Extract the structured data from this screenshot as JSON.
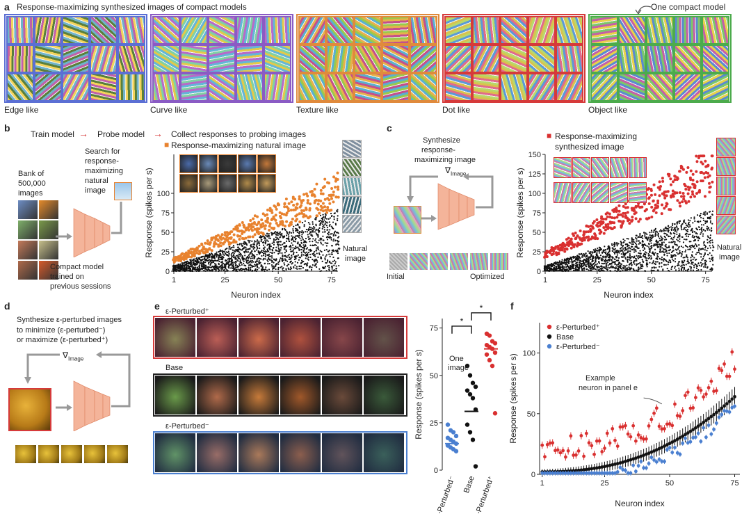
{
  "panel_a": {
    "letter": "a",
    "title": "Response-maximizing synthesized images of compact models",
    "annotation": "One compact model",
    "groups": [
      {
        "label": "Edge like",
        "color": "#5b6fd4"
      },
      {
        "label": "Curve like",
        "color": "#8a5bc4"
      },
      {
        "label": "Texture like",
        "color": "#e08a3c"
      },
      {
        "label": "Dot like",
        "color": "#d63a3a"
      },
      {
        "label": "Object like",
        "color": "#4cab4c"
      }
    ]
  },
  "panel_b": {
    "letter": "b",
    "flow": [
      "Train model",
      "Probe model",
      "Collect responses to probing images"
    ],
    "legend_orange": "Response-maximizing natural image",
    "bank_label": "Bank of 500,000 images",
    "bank_lines": [
      "Bank of",
      "500,000",
      "images"
    ],
    "search_lines": [
      "Search for",
      "response-",
      "maximizing",
      "natural",
      "image"
    ],
    "compact_lines": [
      "Compact model",
      "trained on",
      "previous sessions"
    ],
    "natural_image_lines": [
      "• Natural",
      "image"
    ]
  },
  "panel_c": {
    "letter": "c",
    "synth_lines": [
      "Synthesize",
      "response-",
      "maximizing image"
    ],
    "grad": "∇",
    "grad_sub": "Image",
    "initial": "Initial",
    "optimized": "Optimized",
    "legend_red_lines": [
      "Response-maximizing",
      "synthesized image"
    ],
    "natural_image_lines": [
      "• Natural",
      "image"
    ]
  },
  "panel_d": {
    "letter": "d",
    "lines": [
      "Synthesize ε-perturbed images",
      "to minimize (ε-perturbed⁻)",
      "or maximize (ε-perturbed⁺)"
    ],
    "grad": "∇",
    "grad_sub": "Image"
  },
  "panel_e": {
    "letter": "e",
    "row_labels": [
      "ε-Perturbed⁺",
      "Base",
      "ε-Perturbed⁻"
    ],
    "row_colors": [
      "#d63a3a",
      "#222222",
      "#4a7fd0"
    ],
    "one_image_lines": [
      "One",
      "image"
    ],
    "star": "*"
  },
  "panel_f": {
    "letter": "f",
    "example_lines": [
      "Example",
      "neuron in panel e"
    ]
  },
  "chart_data": [
    {
      "id": "b",
      "type": "scatter",
      "xlabel": "Neuron index",
      "ylabel": "Response (spikes per s)",
      "xticks": [
        1,
        25,
        50,
        75
      ],
      "yticks": [
        0,
        25,
        50,
        75,
        100
      ],
      "xlim": [
        1,
        78
      ],
      "ylim": [
        0,
        150
      ],
      "series": [
        {
          "name": "Response-maximizing natural image",
          "color": "#e8822e"
        },
        {
          "name": "Natural image",
          "color": "#111111"
        }
      ]
    },
    {
      "id": "c",
      "type": "scatter",
      "xlabel": "Neuron index",
      "ylabel": "Response (spikes per s)",
      "xticks": [
        1,
        25,
        50,
        75
      ],
      "yticks": [
        0,
        25,
        50,
        75,
        100,
        125,
        150
      ],
      "xlim": [
        1,
        78
      ],
      "ylim": [
        0,
        150
      ],
      "series": [
        {
          "name": "Response-maximizing synthesized image",
          "color": "#d93030"
        },
        {
          "name": "Natural image",
          "color": "#111111"
        }
      ]
    },
    {
      "id": "e",
      "type": "scatter",
      "ylabel": "Response (spikes per s)",
      "categories": [
        "ε-Perturbed⁻",
        "Base",
        "ε-Perturbed⁺"
      ],
      "yticks": [
        0,
        25,
        50,
        75
      ],
      "ylim": [
        0,
        80
      ],
      "colors": [
        "#4a7fd0",
        "#111111",
        "#d93030"
      ],
      "points": [
        [
          24,
          21,
          20,
          18,
          17,
          16,
          15,
          14,
          13,
          12,
          11,
          10
        ],
        [
          55,
          50,
          46,
          44,
          42,
          40,
          38,
          32,
          24,
          20,
          16,
          2
        ],
        [
          72,
          71,
          68,
          67,
          66,
          65,
          64,
          62,
          61,
          58,
          55,
          30
        ]
      ],
      "means": [
        14,
        31,
        64
      ]
    },
    {
      "id": "f",
      "type": "scatter",
      "xlabel": "Neuron index",
      "ylabel": "Response (spikes per s)",
      "xticks": [
        1,
        25,
        50,
        75
      ],
      "yticks": [
        0,
        50,
        100
      ],
      "xlim": [
        0,
        77
      ],
      "ylim": [
        0,
        125
      ],
      "series": [
        {
          "name": "ε-Perturbed⁺",
          "color": "#d93030"
        },
        {
          "name": "Base",
          "color": "#111111"
        },
        {
          "name": "ε-Perturbed⁻",
          "color": "#4a7fd0"
        }
      ]
    }
  ]
}
